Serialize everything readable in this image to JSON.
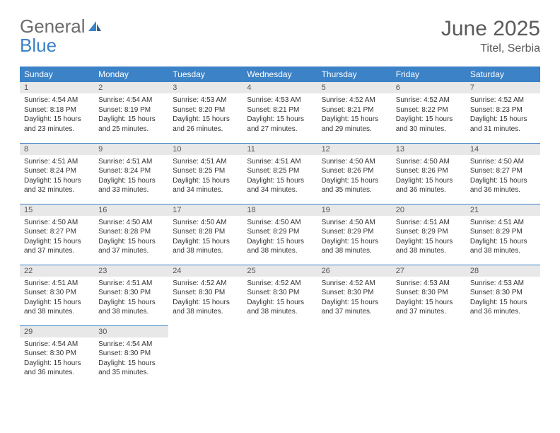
{
  "brand": {
    "text_general": "General",
    "text_blue": "Blue",
    "general_color": "#6b6b6b",
    "blue_color": "#3b82c7"
  },
  "title": "June 2025",
  "location": "Titel, Serbia",
  "colors": {
    "header_bg": "#3b82c7",
    "header_text": "#ffffff",
    "daynum_bg": "#e8e8e8",
    "daynum_text": "#555555",
    "border": "#3b82c7",
    "body_text": "#333333"
  },
  "weekdays": [
    "Sunday",
    "Monday",
    "Tuesday",
    "Wednesday",
    "Thursday",
    "Friday",
    "Saturday"
  ],
  "days": [
    {
      "n": 1,
      "sunrise": "4:54 AM",
      "sunset": "8:18 PM",
      "daylight": "15 hours and 23 minutes."
    },
    {
      "n": 2,
      "sunrise": "4:54 AM",
      "sunset": "8:19 PM",
      "daylight": "15 hours and 25 minutes."
    },
    {
      "n": 3,
      "sunrise": "4:53 AM",
      "sunset": "8:20 PM",
      "daylight": "15 hours and 26 minutes."
    },
    {
      "n": 4,
      "sunrise": "4:53 AM",
      "sunset": "8:21 PM",
      "daylight": "15 hours and 27 minutes."
    },
    {
      "n": 5,
      "sunrise": "4:52 AM",
      "sunset": "8:21 PM",
      "daylight": "15 hours and 29 minutes."
    },
    {
      "n": 6,
      "sunrise": "4:52 AM",
      "sunset": "8:22 PM",
      "daylight": "15 hours and 30 minutes."
    },
    {
      "n": 7,
      "sunrise": "4:52 AM",
      "sunset": "8:23 PM",
      "daylight": "15 hours and 31 minutes."
    },
    {
      "n": 8,
      "sunrise": "4:51 AM",
      "sunset": "8:24 PM",
      "daylight": "15 hours and 32 minutes."
    },
    {
      "n": 9,
      "sunrise": "4:51 AM",
      "sunset": "8:24 PM",
      "daylight": "15 hours and 33 minutes."
    },
    {
      "n": 10,
      "sunrise": "4:51 AM",
      "sunset": "8:25 PM",
      "daylight": "15 hours and 34 minutes."
    },
    {
      "n": 11,
      "sunrise": "4:51 AM",
      "sunset": "8:25 PM",
      "daylight": "15 hours and 34 minutes."
    },
    {
      "n": 12,
      "sunrise": "4:50 AM",
      "sunset": "8:26 PM",
      "daylight": "15 hours and 35 minutes."
    },
    {
      "n": 13,
      "sunrise": "4:50 AM",
      "sunset": "8:26 PM",
      "daylight": "15 hours and 36 minutes."
    },
    {
      "n": 14,
      "sunrise": "4:50 AM",
      "sunset": "8:27 PM",
      "daylight": "15 hours and 36 minutes."
    },
    {
      "n": 15,
      "sunrise": "4:50 AM",
      "sunset": "8:27 PM",
      "daylight": "15 hours and 37 minutes."
    },
    {
      "n": 16,
      "sunrise": "4:50 AM",
      "sunset": "8:28 PM",
      "daylight": "15 hours and 37 minutes."
    },
    {
      "n": 17,
      "sunrise": "4:50 AM",
      "sunset": "8:28 PM",
      "daylight": "15 hours and 38 minutes."
    },
    {
      "n": 18,
      "sunrise": "4:50 AM",
      "sunset": "8:29 PM",
      "daylight": "15 hours and 38 minutes."
    },
    {
      "n": 19,
      "sunrise": "4:50 AM",
      "sunset": "8:29 PM",
      "daylight": "15 hours and 38 minutes."
    },
    {
      "n": 20,
      "sunrise": "4:51 AM",
      "sunset": "8:29 PM",
      "daylight": "15 hours and 38 minutes."
    },
    {
      "n": 21,
      "sunrise": "4:51 AM",
      "sunset": "8:29 PM",
      "daylight": "15 hours and 38 minutes."
    },
    {
      "n": 22,
      "sunrise": "4:51 AM",
      "sunset": "8:30 PM",
      "daylight": "15 hours and 38 minutes."
    },
    {
      "n": 23,
      "sunrise": "4:51 AM",
      "sunset": "8:30 PM",
      "daylight": "15 hours and 38 minutes."
    },
    {
      "n": 24,
      "sunrise": "4:52 AM",
      "sunset": "8:30 PM",
      "daylight": "15 hours and 38 minutes."
    },
    {
      "n": 25,
      "sunrise": "4:52 AM",
      "sunset": "8:30 PM",
      "daylight": "15 hours and 38 minutes."
    },
    {
      "n": 26,
      "sunrise": "4:52 AM",
      "sunset": "8:30 PM",
      "daylight": "15 hours and 37 minutes."
    },
    {
      "n": 27,
      "sunrise": "4:53 AM",
      "sunset": "8:30 PM",
      "daylight": "15 hours and 37 minutes."
    },
    {
      "n": 28,
      "sunrise": "4:53 AM",
      "sunset": "8:30 PM",
      "daylight": "15 hours and 36 minutes."
    },
    {
      "n": 29,
      "sunrise": "4:54 AM",
      "sunset": "8:30 PM",
      "daylight": "15 hours and 36 minutes."
    },
    {
      "n": 30,
      "sunrise": "4:54 AM",
      "sunset": "8:30 PM",
      "daylight": "15 hours and 35 minutes."
    }
  ],
  "labels": {
    "sunrise": "Sunrise: ",
    "sunset": "Sunset: ",
    "daylight": "Daylight: "
  },
  "grid": {
    "start_weekday": 0,
    "rows": 5,
    "cols": 7
  }
}
